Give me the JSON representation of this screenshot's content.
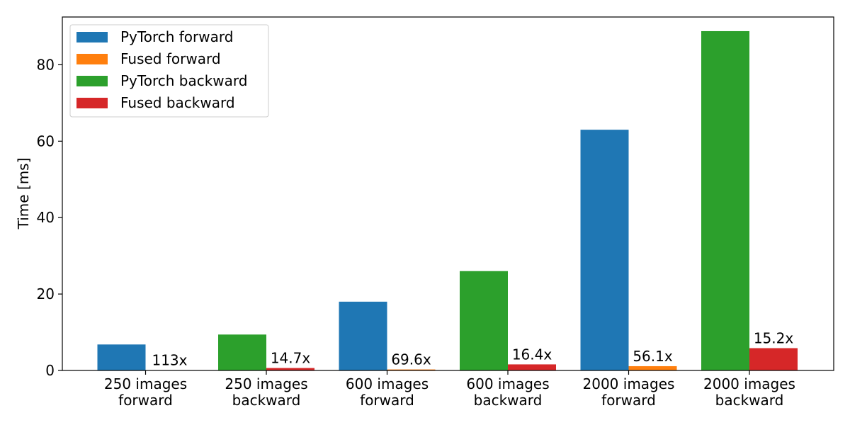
{
  "chart_data": {
    "type": "bar",
    "categories": [
      [
        "250 images",
        "forward"
      ],
      [
        "250 images",
        "backward"
      ],
      [
        "600 images",
        "forward"
      ],
      [
        "600 images",
        "backward"
      ],
      [
        "2000 images",
        "forward"
      ],
      [
        "2000 images",
        "backward"
      ]
    ],
    "ylabel": "Time [ms]",
    "ylim": [
      0,
      92.5
    ],
    "yticks": [
      0,
      20,
      40,
      60,
      80
    ],
    "grid": false,
    "legend_position": "top-left",
    "series": [
      {
        "name": "PyTorch forward",
        "color": "#1f77b4",
        "slot": 0,
        "values": [
          6.8,
          null,
          18.0,
          null,
          63.0,
          null
        ]
      },
      {
        "name": "Fused forward",
        "color": "#ff7f0e",
        "slot": 1,
        "values": [
          0.06,
          null,
          0.26,
          null,
          1.12,
          null
        ]
      },
      {
        "name": "PyTorch backward",
        "color": "#2ca02c",
        "slot": 0,
        "values": [
          null,
          9.4,
          null,
          26.0,
          null,
          88.8
        ]
      },
      {
        "name": "Fused backward",
        "color": "#d62728",
        "slot": 1,
        "values": [
          null,
          0.64,
          null,
          1.59,
          null,
          5.84
        ]
      }
    ],
    "annotations": [
      "113x",
      "14.7x",
      "69.6x",
      "16.4x",
      "56.1x",
      "15.2x"
    ]
  }
}
